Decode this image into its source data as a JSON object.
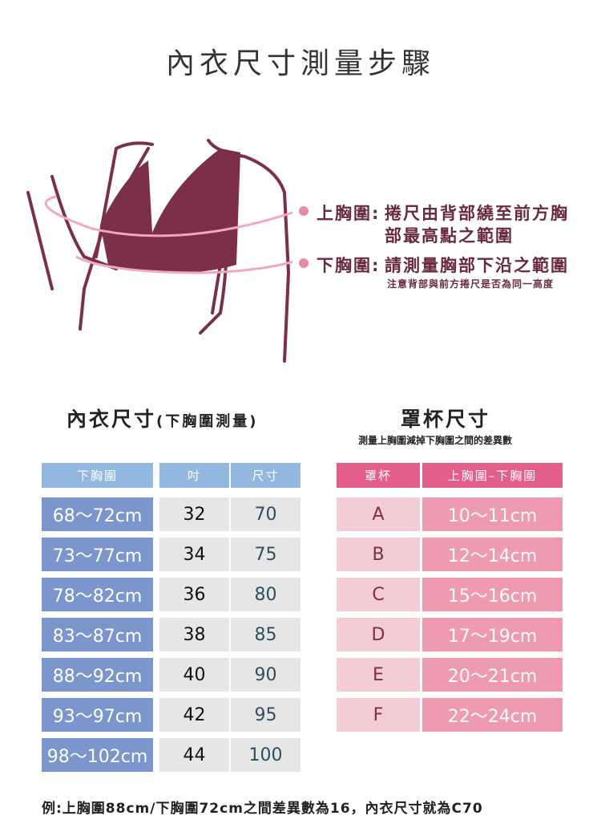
{
  "title": "內衣尺寸測量步驟",
  "notes": {
    "upper_label": "上胸圍:",
    "upper_text1": "捲尺由背部繞至前方胸",
    "upper_text2": "部最高點之範圍",
    "lower_label": "下胸圍:",
    "lower_text": "請測量胸部下沿之範圍",
    "lower_sub": "注意背部與前方捲尺是否為同一高度"
  },
  "size_table": {
    "heading": "內衣尺寸",
    "heading_paren": "(下胸圍測量)",
    "headers": [
      "下胸圍",
      "吋",
      "尺寸"
    ],
    "rows": [
      [
        "68～72cm",
        "32",
        "70"
      ],
      [
        "73～77cm",
        "34",
        "75"
      ],
      [
        "78～82cm",
        "36",
        "80"
      ],
      [
        "83～87cm",
        "38",
        "85"
      ],
      [
        "88～92cm",
        "40",
        "90"
      ],
      [
        "93～97cm",
        "42",
        "95"
      ],
      [
        "98～102cm",
        "44",
        "100"
      ]
    ]
  },
  "cup_table": {
    "heading": "罩杯尺寸",
    "subtitle": "測量上胸圍減掉下胸圍之間的差異數",
    "headers": [
      "罩杯",
      "上胸圍–下胸圍"
    ],
    "rows": [
      [
        "A",
        "10～11cm"
      ],
      [
        "B",
        "12～14cm"
      ],
      [
        "C",
        "15～16cm"
      ],
      [
        "D",
        "17～19cm"
      ],
      [
        "E",
        "20～21cm"
      ],
      [
        "F",
        "22～24cm"
      ]
    ]
  },
  "footer": "例:上胸圍88cm/下胸圍72cm之間差異數為16，內衣尺寸就為C70",
  "colors": {
    "size_header": "#93b8e0",
    "size_range": "#7b96cc",
    "size_gray": "#e6e6e6",
    "cup_header": "#e35e88",
    "cup_letter": "#f3ccd6",
    "cup_range": "#ee9ab0",
    "maroon": "#7b2f48"
  }
}
